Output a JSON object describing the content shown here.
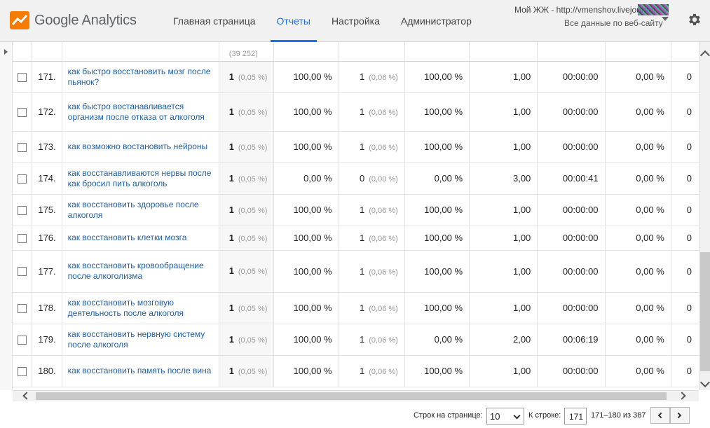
{
  "header": {
    "logo_text": "Google Analytics",
    "nav": [
      {
        "label": "Главная страница"
      },
      {
        "label": "Отчеты"
      },
      {
        "label": "Настройка"
      },
      {
        "label": "Администратор"
      }
    ],
    "account_line1": "Мой ЖЖ - http://vmenshov.livejournal....",
    "account_line2": "Все данные по веб-сайту"
  },
  "table": {
    "header_partial": "(39 252)",
    "rows": [
      {
        "idx": "171.",
        "keyword": "как быстро восстановить мозг после пьянок?",
        "sessions": "1",
        "sessions_pct": "(0,05 %)",
        "new_pct": "100,00 %",
        "new_users": "1",
        "new_users_pct": "(0,06 %)",
        "bounce": "100,00 %",
        "depth": "1,00",
        "duration": "00:00:00",
        "conv": "0,00 %",
        "last": "0"
      },
      {
        "idx": "172.",
        "keyword": "как быстро востанавливается организм после отказа от алкоголя",
        "sessions": "1",
        "sessions_pct": "(0,05 %)",
        "new_pct": "100,00 %",
        "new_users": "1",
        "new_users_pct": "(0,06 %)",
        "bounce": "100,00 %",
        "depth": "1,00",
        "duration": "00:00:00",
        "conv": "0,00 %",
        "last": "0"
      },
      {
        "idx": "173.",
        "keyword": "как возможно востановить нейроны",
        "sessions": "1",
        "sessions_pct": "(0,05 %)",
        "new_pct": "100,00 %",
        "new_users": "1",
        "new_users_pct": "(0,06 %)",
        "bounce": "100,00 %",
        "depth": "1,00",
        "duration": "00:00:00",
        "conv": "0,00 %",
        "last": "0"
      },
      {
        "idx": "174.",
        "keyword": "как восстанавливаются нервы после как бросил пить алкоголь",
        "sessions": "1",
        "sessions_pct": "(0,05 %)",
        "new_pct": "0,00 %",
        "new_users": "0",
        "new_users_pct": "(0,00 %)",
        "bounce": "0,00 %",
        "depth": "3,00",
        "duration": "00:00:41",
        "conv": "0,00 %",
        "last": "0"
      },
      {
        "idx": "175.",
        "keyword": "как восстановить здоровье после алкоголя",
        "sessions": "1",
        "sessions_pct": "(0,05 %)",
        "new_pct": "100,00 %",
        "new_users": "1",
        "new_users_pct": "(0,06 %)",
        "bounce": "100,00 %",
        "depth": "1,00",
        "duration": "00:00:00",
        "conv": "0,00 %",
        "last": "0"
      },
      {
        "idx": "176.",
        "keyword": "как восстановить клетки мозга",
        "sessions": "1",
        "sessions_pct": "(0,05 %)",
        "new_pct": "100,00 %",
        "new_users": "1",
        "new_users_pct": "(0,06 %)",
        "bounce": "100,00 %",
        "depth": "1,00",
        "duration": "00:00:00",
        "conv": "0,00 %",
        "last": "0"
      },
      {
        "idx": "177.",
        "keyword": "как восстановить кровообращение после алкоголизма",
        "sessions": "1",
        "sessions_pct": "(0,05 %)",
        "new_pct": "100,00 %",
        "new_users": "1",
        "new_users_pct": "(0,06 %)",
        "bounce": "100,00 %",
        "depth": "1,00",
        "duration": "00:00:00",
        "conv": "0,00 %",
        "last": "0"
      },
      {
        "idx": "178.",
        "keyword": "как восстановить мозговую деятельность после алкоголя",
        "sessions": "1",
        "sessions_pct": "(0,05 %)",
        "new_pct": "100,00 %",
        "new_users": "1",
        "new_users_pct": "(0,06 %)",
        "bounce": "100,00 %",
        "depth": "1,00",
        "duration": "00:00:00",
        "conv": "0,00 %",
        "last": "0"
      },
      {
        "idx": "179.",
        "keyword": "как восстановить нервную систему после алкоголя",
        "sessions": "1",
        "sessions_pct": "(0,05 %)",
        "new_pct": "100,00 %",
        "new_users": "1",
        "new_users_pct": "(0,06 %)",
        "bounce": "0,00 %",
        "depth": "2,00",
        "duration": "00:06:19",
        "conv": "0,00 %",
        "last": "0"
      },
      {
        "idx": "180.",
        "keyword": "как восстановить память после вина",
        "sessions": "1",
        "sessions_pct": "(0,05 %)",
        "new_pct": "100,00 %",
        "new_users": "1",
        "new_users_pct": "(0,06 %)",
        "bounce": "100,00 %",
        "depth": "1,00",
        "duration": "00:00:00",
        "conv": "0,00 %",
        "last": "0"
      }
    ]
  },
  "pager": {
    "rows_label": "Строк на странице:",
    "rows_value": "10",
    "goto_label": "К строке:",
    "goto_value": "171",
    "range": "171–180 из 387"
  },
  "colors": {
    "accent": "#1a73e8",
    "link": "#1f5fa6",
    "logo": "#f57c00"
  }
}
